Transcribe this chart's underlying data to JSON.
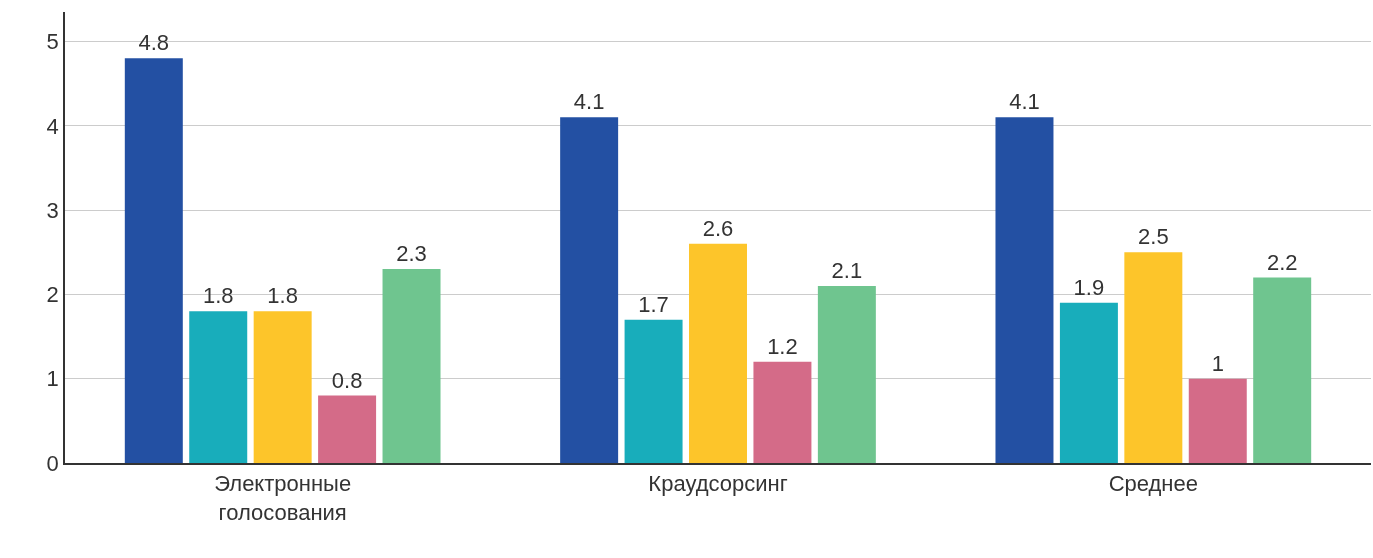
{
  "chart_data": {
    "type": "bar",
    "categories": [
      "Электронные голосования",
      "Краудсорсинг",
      "Среднее"
    ],
    "series": [
      {
        "color": "#2350a3",
        "values": [
          4.8,
          4.1,
          4.1
        ]
      },
      {
        "color": "#18adbb",
        "values": [
          1.8,
          1.7,
          1.9
        ]
      },
      {
        "color": "#fdc52a",
        "values": [
          1.8,
          2.6,
          2.5
        ]
      },
      {
        "color": "#d46b88",
        "values": [
          0.8,
          1.2,
          1
        ]
      },
      {
        "color": "#6fc58f",
        "values": [
          2.3,
          2.1,
          2.2
        ]
      }
    ],
    "ylim": [
      0,
      5.35
    ],
    "yticks": [
      0,
      1,
      2,
      3,
      4,
      5
    ],
    "grid": "y",
    "data_labels": true
  }
}
